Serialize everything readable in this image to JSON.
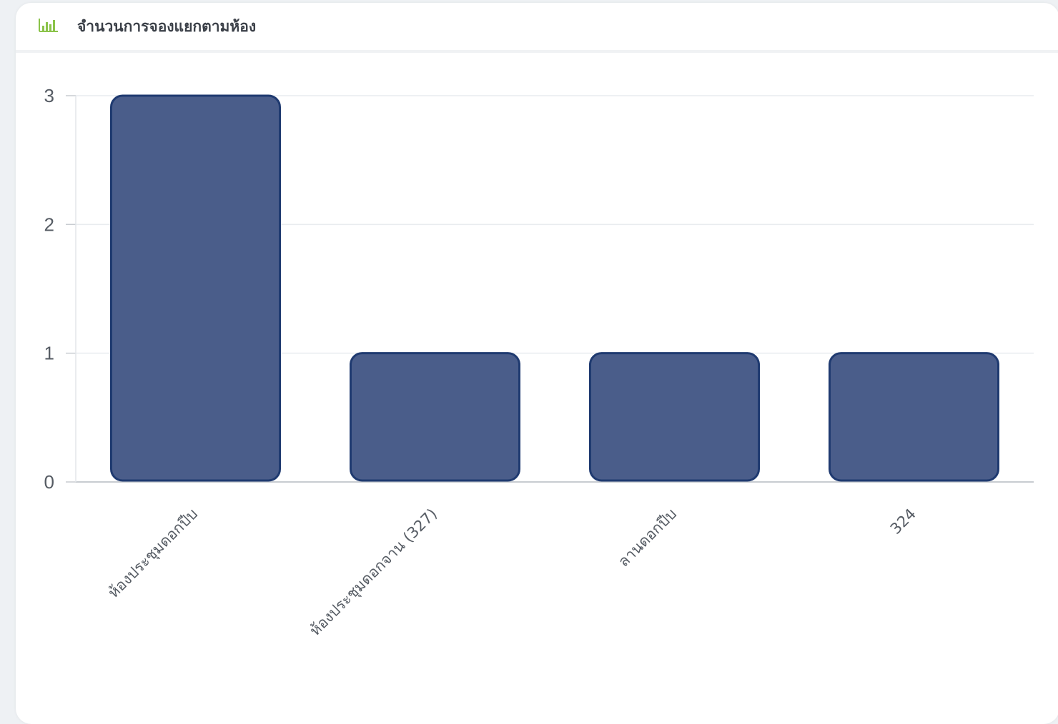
{
  "card": {
    "title": "จำนวนการจองแยกตามห้อง",
    "icon": "bar-chart-icon",
    "icon_color": "#8bc34a"
  },
  "chart_data": {
    "type": "bar",
    "categories": [
      "ห้องประชุมดอกปีบ",
      "ห้องประชุมดอกจาน (327)",
      "ลานดอกปีบ",
      "324"
    ],
    "values": [
      3,
      1,
      1,
      1
    ],
    "title": "",
    "xlabel": "",
    "ylabel": "",
    "ylim": [
      0,
      3
    ],
    "yticks": [
      0,
      1,
      2,
      3
    ],
    "grid": true,
    "legend": "none",
    "bar_color": "#4a5d8a",
    "bar_border_color": "#1f3a70"
  }
}
